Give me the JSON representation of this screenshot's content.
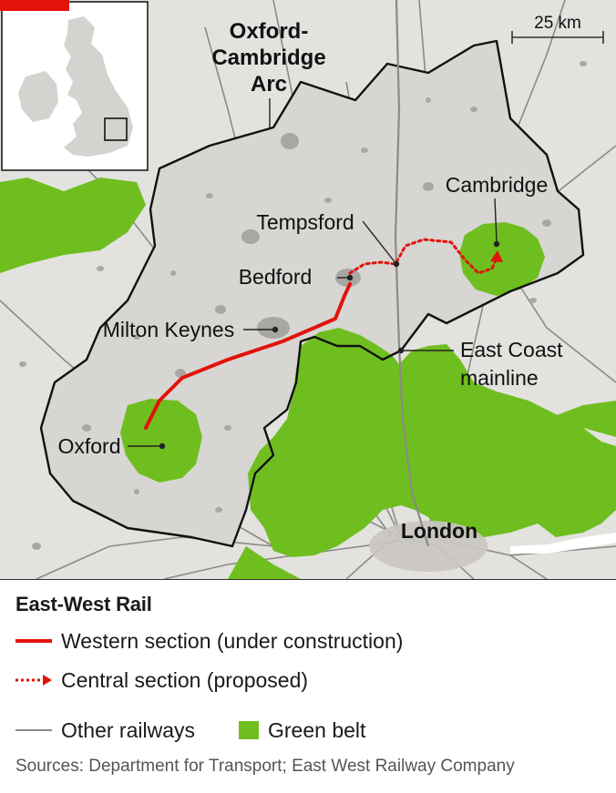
{
  "colors": {
    "land": "#e3e2df",
    "arc_fill": "#d7d6d2",
    "urban": "#a9a7a2",
    "green_belt": "#6fbe1f",
    "arc_border": "#111111",
    "western_section": "#e3120b",
    "central_section": "#e3120b",
    "other_railways": "#8c8a86",
    "water": "#ffffff"
  },
  "map": {
    "arc_label": "Oxford-\nCambridge\nArc",
    "scale_bar_label": "25 km",
    "places": {
      "cambridge": "Cambridge",
      "tempsford": "Tempsford",
      "bedford": "Bedford",
      "milton_keynes": "Milton Keynes",
      "oxford": "Oxford",
      "east_coast_mainline": "East Coast\nmainline",
      "london": "London"
    }
  },
  "legend": {
    "title": "East-West Rail",
    "items": [
      {
        "key": "western",
        "label": "Western section (under construction)"
      },
      {
        "key": "central",
        "label": "Central section (proposed)"
      },
      {
        "key": "other",
        "label": "Other railways"
      },
      {
        "key": "greenbelt",
        "label": "Green belt"
      }
    ],
    "sources": "Sources: Department for Transport; East West Railway Company"
  }
}
